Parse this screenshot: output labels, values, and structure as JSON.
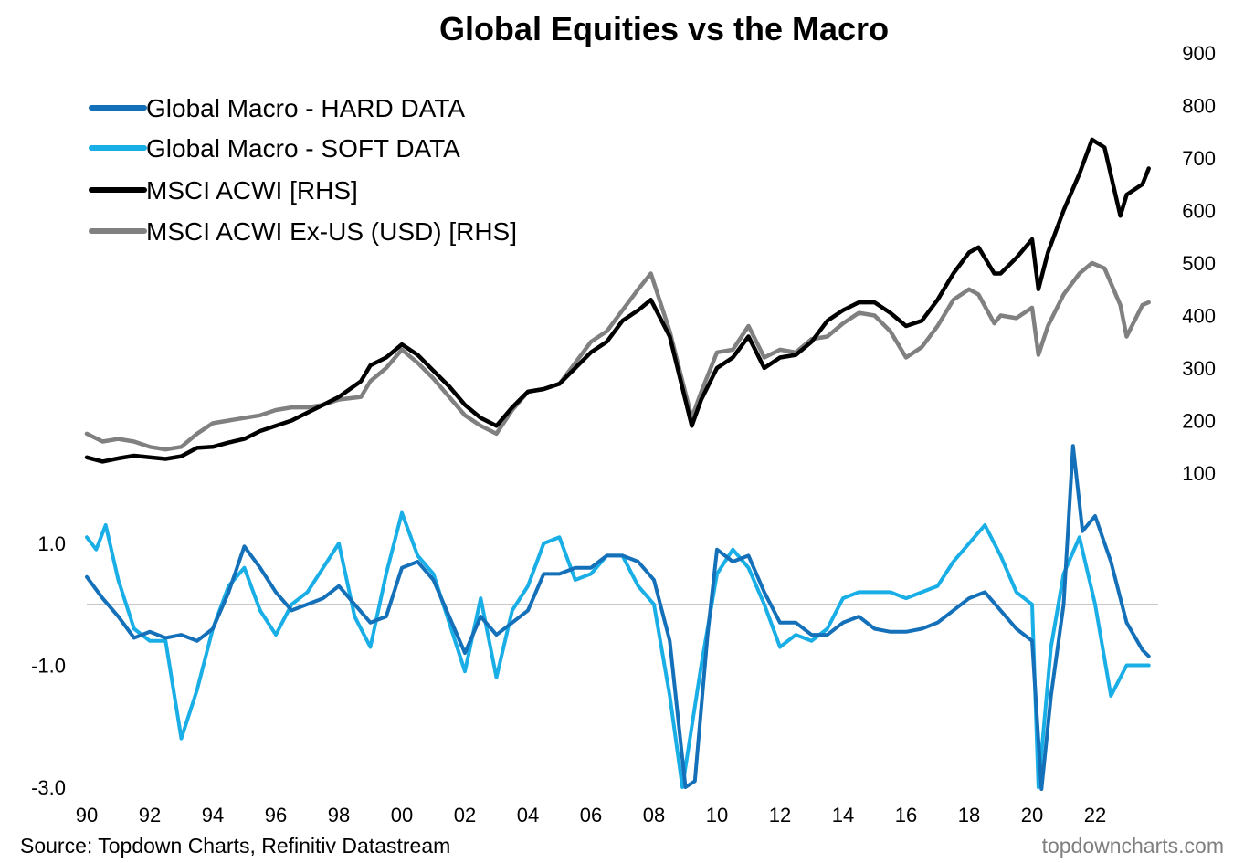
{
  "chart_data": {
    "type": "line",
    "title": "Global Equities vs the Macro",
    "source": "Source: Topdown Charts, Refinitiv Datastream",
    "brand": "topdowncharts.com",
    "colors": {
      "hard": "#1470b8",
      "soft": "#19aee6",
      "acwi": "#000000",
      "exus": "#808080",
      "zero": "#c8c8c8"
    },
    "x_ticks": [
      "90",
      "92",
      "94",
      "96",
      "98",
      "00",
      "02",
      "04",
      "06",
      "08",
      "10",
      "12",
      "14",
      "16",
      "18",
      "20",
      "22"
    ],
    "x_tick_years": [
      1990,
      1992,
      1994,
      1996,
      1998,
      2000,
      2002,
      2004,
      2006,
      2008,
      2010,
      2012,
      2014,
      2016,
      2018,
      2020,
      2022
    ],
    "x_range": [
      1990,
      2024
    ],
    "upper_axis": {
      "side": "right",
      "ticks": [
        100,
        200,
        300,
        400,
        500,
        600,
        700,
        800,
        900
      ],
      "tick_labels": [
        "100",
        "200",
        "300",
        "400",
        "500",
        "600",
        "700",
        "800",
        "900"
      ],
      "range": [
        0,
        900
      ]
    },
    "lower_axis": {
      "side": "left",
      "ticks": [
        1.0,
        -1.0,
        -3.0
      ],
      "tick_labels": [
        "1.0",
        "-1.0",
        "-3.0"
      ],
      "range": [
        -3.0,
        2.0
      ]
    },
    "legend": [
      {
        "key": "hard",
        "label": "Global Macro - HARD DATA"
      },
      {
        "key": "soft",
        "label": "Global Macro - SOFT DATA"
      },
      {
        "key": "acwi",
        "label": "MSCI ACWI [RHS]"
      },
      {
        "key": "exus",
        "label": "MSCI ACWI Ex-US (USD) [RHS]"
      }
    ],
    "series": [
      {
        "key": "acwi",
        "name": "MSCI ACWI [RHS]",
        "axis": "upper",
        "x": [
          1990,
          1990.5,
          1991,
          1991.5,
          1992,
          1992.5,
          1993,
          1993.5,
          1994,
          1994.5,
          1995,
          1995.5,
          1996,
          1996.5,
          1997,
          1997.5,
          1998,
          1998.7,
          1999,
          1999.5,
          2000,
          2000.5,
          2001,
          2001.5,
          2002,
          2002.5,
          2003,
          2003.5,
          2004,
          2004.5,
          2005,
          2005.5,
          2006,
          2006.5,
          2007,
          2007.5,
          2007.9,
          2008.5,
          2009.2,
          2009.5,
          2010,
          2010.5,
          2011,
          2011.5,
          2012,
          2012.5,
          2013,
          2013.5,
          2014,
          2014.5,
          2015,
          2015.5,
          2016,
          2016.5,
          2017,
          2017.5,
          2018,
          2018.3,
          2018.8,
          2019,
          2019.5,
          2020,
          2020.2,
          2020.5,
          2021,
          2021.5,
          2021.9,
          2022.3,
          2022.8,
          2023,
          2023.5,
          2023.7
        ],
        "y": [
          130,
          122,
          128,
          133,
          130,
          127,
          132,
          148,
          150,
          158,
          165,
          180,
          190,
          200,
          215,
          230,
          245,
          275,
          305,
          320,
          345,
          325,
          295,
          265,
          230,
          205,
          190,
          225,
          255,
          260,
          270,
          300,
          330,
          350,
          390,
          410,
          430,
          360,
          190,
          240,
          300,
          320,
          360,
          300,
          320,
          325,
          350,
          390,
          410,
          425,
          425,
          405,
          380,
          390,
          430,
          480,
          520,
          530,
          480,
          480,
          510,
          545,
          450,
          520,
          600,
          670,
          735,
          720,
          590,
          630,
          650,
          680
        ]
      },
      {
        "key": "exus",
        "name": "MSCI ACWI Ex-US (USD) [RHS]",
        "axis": "upper",
        "x": [
          1990,
          1990.5,
          1991,
          1991.5,
          1992,
          1992.5,
          1993,
          1993.5,
          1994,
          1994.5,
          1995,
          1995.5,
          1996,
          1996.5,
          1997,
          1997.5,
          1998,
          1998.7,
          1999,
          1999.5,
          2000,
          2000.5,
          2001,
          2001.5,
          2002,
          2002.5,
          2003,
          2003.5,
          2004,
          2004.5,
          2005,
          2005.5,
          2006,
          2006.5,
          2007,
          2007.5,
          2007.9,
          2008.5,
          2009.2,
          2009.5,
          2010,
          2010.5,
          2011,
          2011.5,
          2012,
          2012.5,
          2013,
          2013.5,
          2014,
          2014.5,
          2015,
          2015.5,
          2016,
          2016.5,
          2017,
          2017.5,
          2018,
          2018.3,
          2018.8,
          2019,
          2019.5,
          2020,
          2020.2,
          2020.5,
          2021,
          2021.5,
          2021.9,
          2022.3,
          2022.8,
          2023,
          2023.5,
          2023.7
        ],
        "y": [
          175,
          160,
          165,
          160,
          150,
          145,
          150,
          175,
          195,
          200,
          205,
          210,
          220,
          225,
          225,
          230,
          240,
          245,
          275,
          300,
          335,
          310,
          280,
          245,
          210,
          190,
          175,
          220,
          255,
          260,
          270,
          310,
          350,
          370,
          410,
          450,
          480,
          370,
          205,
          255,
          330,
          335,
          380,
          320,
          335,
          330,
          355,
          360,
          385,
          405,
          400,
          370,
          320,
          340,
          380,
          430,
          450,
          440,
          385,
          400,
          395,
          415,
          325,
          380,
          440,
          480,
          500,
          490,
          420,
          360,
          420,
          425
        ]
      },
      {
        "key": "hard",
        "name": "Global Macro - HARD DATA",
        "axis": "lower",
        "x": [
          1990,
          1990.5,
          1991,
          1991.5,
          1992,
          1992.5,
          1993,
          1993.5,
          1994,
          1994.5,
          1995,
          1995.5,
          1996,
          1996.5,
          1997,
          1997.5,
          1998,
          1998.5,
          1999,
          1999.5,
          2000,
          2000.5,
          2001,
          2001.5,
          2002,
          2002.5,
          2003,
          2003.5,
          2004,
          2004.5,
          2005,
          2005.5,
          2006,
          2006.5,
          2007,
          2007.5,
          2008,
          2008.5,
          2009,
          2009.3,
          2009.7,
          2010,
          2010.5,
          2011,
          2011.5,
          2012,
          2012.5,
          2013,
          2013.5,
          2014,
          2014.5,
          2015,
          2015.5,
          2016,
          2016.5,
          2017,
          2017.5,
          2018,
          2018.5,
          2019,
          2019.5,
          2020,
          2020.3,
          2020.6,
          2021,
          2021.3,
          2021.6,
          2022,
          2022.5,
          2023,
          2023.5,
          2023.7
        ],
        "y": [
          0.45,
          0.1,
          -0.2,
          -0.55,
          -0.45,
          -0.55,
          -0.5,
          -0.6,
          -0.4,
          0.2,
          0.95,
          0.6,
          0.2,
          -0.1,
          0.0,
          0.1,
          0.3,
          0.0,
          -0.3,
          -0.2,
          0.6,
          0.7,
          0.4,
          -0.2,
          -0.8,
          -0.2,
          -0.5,
          -0.3,
          -0.1,
          0.5,
          0.5,
          0.6,
          0.6,
          0.8,
          0.8,
          0.7,
          0.4,
          -0.6,
          -3.0,
          -2.9,
          -0.5,
          0.9,
          0.7,
          0.8,
          0.2,
          -0.3,
          -0.3,
          -0.5,
          -0.5,
          -0.3,
          -0.2,
          -0.4,
          -0.45,
          -0.45,
          -0.4,
          -0.3,
          -0.1,
          0.1,
          0.2,
          -0.1,
          -0.4,
          -0.6,
          -3.1,
          -1.5,
          0.0,
          2.6,
          1.2,
          1.45,
          0.7,
          -0.3,
          -0.75,
          -0.85
        ]
      },
      {
        "key": "soft",
        "name": "Global Macro - SOFT DATA",
        "axis": "lower",
        "x": [
          1990,
          1990.3,
          1990.6,
          1991,
          1991.5,
          1992,
          1992.5,
          1993,
          1993.5,
          1994,
          1994.5,
          1995,
          1995.5,
          1996,
          1996.5,
          1997,
          1997.5,
          1998,
          1998.5,
          1999,
          1999.5,
          2000,
          2000.5,
          2001,
          2001.5,
          2002,
          2002.5,
          2003,
          2003.5,
          2004,
          2004.5,
          2005,
          2005.5,
          2006,
          2006.5,
          2007,
          2007.5,
          2008,
          2008.5,
          2008.9,
          2009.5,
          2010,
          2010.5,
          2011,
          2011.5,
          2012,
          2012.5,
          2013,
          2013.5,
          2014,
          2014.5,
          2015,
          2015.5,
          2016,
          2016.5,
          2017,
          2017.5,
          2018,
          2018.5,
          2019,
          2019.5,
          2020,
          2020.2,
          2020.6,
          2021,
          2021.5,
          2022,
          2022.5,
          2023,
          2023.5,
          2023.7
        ],
        "y": [
          1.1,
          0.9,
          1.3,
          0.4,
          -0.4,
          -0.6,
          -0.6,
          -2.2,
          -1.4,
          -0.4,
          0.3,
          0.6,
          -0.1,
          -0.5,
          0.0,
          0.2,
          0.6,
          1.0,
          -0.2,
          -0.7,
          0.5,
          1.5,
          0.8,
          0.5,
          -0.3,
          -1.1,
          0.1,
          -1.2,
          -0.1,
          0.3,
          1.0,
          1.1,
          0.4,
          0.5,
          0.8,
          0.8,
          0.3,
          0.0,
          -1.5,
          -3.0,
          -1.0,
          0.5,
          0.9,
          0.6,
          0.0,
          -0.7,
          -0.5,
          -0.6,
          -0.4,
          0.1,
          0.2,
          0.2,
          0.2,
          0.1,
          0.2,
          0.3,
          0.7,
          1.0,
          1.3,
          0.8,
          0.2,
          0.0,
          -3.0,
          -0.7,
          0.5,
          1.1,
          0.0,
          -1.5,
          -1.0,
          -1.0,
          -1.0
        ]
      }
    ]
  }
}
